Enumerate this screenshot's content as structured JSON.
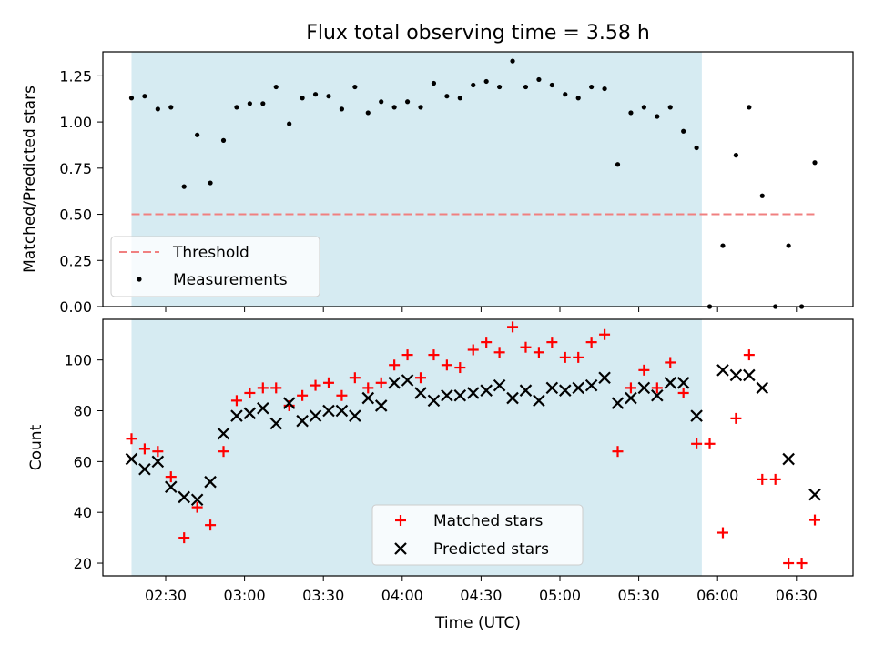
{
  "chart_data": [
    {
      "type": "scatter",
      "title": "Flux total observing time = 3.58 h",
      "xlabel": "",
      "ylabel": "Matched/Predicted stars",
      "ylim": [
        0,
        1.38
      ],
      "yticks": [
        "0.00",
        "0.25",
        "0.50",
        "0.75",
        "1.00",
        "1.25"
      ],
      "observing_window": [
        "02:17",
        "05:54"
      ],
      "threshold": {
        "name": "Threshold",
        "value": 0.5,
        "color": "#f08080"
      },
      "series": [
        {
          "name": "Measurements",
          "color": "#000000",
          "x": [
            "02:17",
            "02:22",
            "02:27",
            "02:32",
            "02:37",
            "02:42",
            "02:47",
            "02:52",
            "02:57",
            "03:02",
            "03:07",
            "03:12",
            "03:17",
            "03:22",
            "03:27",
            "03:32",
            "03:37",
            "03:42",
            "03:47",
            "03:52",
            "03:57",
            "04:02",
            "04:07",
            "04:12",
            "04:17",
            "04:22",
            "04:27",
            "04:32",
            "04:37",
            "04:42",
            "04:47",
            "04:52",
            "04:57",
            "05:02",
            "05:07",
            "05:12",
            "05:17",
            "05:22",
            "05:27",
            "05:32",
            "05:37",
            "05:42",
            "05:47",
            "05:52",
            "05:57",
            "06:02",
            "06:07",
            "06:12",
            "06:17",
            "06:22",
            "06:27",
            "06:32",
            "06:37"
          ],
          "y": [
            1.13,
            1.14,
            1.07,
            1.08,
            0.65,
            0.93,
            0.67,
            0.9,
            1.08,
            1.1,
            1.1,
            1.19,
            0.99,
            1.13,
            1.15,
            1.14,
            1.07,
            1.19,
            1.05,
            1.11,
            1.08,
            1.11,
            1.08,
            1.21,
            1.14,
            1.13,
            1.2,
            1.22,
            1.19,
            1.33,
            1.19,
            1.23,
            1.2,
            1.15,
            1.13,
            1.19,
            1.18,
            0.77,
            1.05,
            1.08,
            1.03,
            1.08,
            0.95,
            0.86,
            0.0,
            0.33,
            0.82,
            1.08,
            0.6,
            0.0,
            0.33,
            0.0,
            0.78
          ]
        }
      ],
      "legend": [
        "Threshold",
        "Measurements"
      ],
      "legend_position": "lower-left"
    },
    {
      "type": "scatter",
      "title": "",
      "xlabel": "Time (UTC)",
      "ylabel": "Count",
      "ylim": [
        15,
        116
      ],
      "yticks": [
        "20",
        "40",
        "60",
        "80",
        "100"
      ],
      "xticks": [
        "02:30",
        "03:00",
        "03:30",
        "04:00",
        "04:30",
        "05:00",
        "05:30",
        "06:00",
        "06:30"
      ],
      "observing_window": [
        "02:17",
        "05:54"
      ],
      "x": [
        "02:17",
        "02:22",
        "02:27",
        "02:32",
        "02:37",
        "02:42",
        "02:47",
        "02:52",
        "02:57",
        "03:02",
        "03:07",
        "03:12",
        "03:17",
        "03:22",
        "03:27",
        "03:32",
        "03:37",
        "03:42",
        "03:47",
        "03:52",
        "03:57",
        "04:02",
        "04:07",
        "04:12",
        "04:17",
        "04:22",
        "04:27",
        "04:32",
        "04:37",
        "04:42",
        "04:47",
        "04:52",
        "04:57",
        "05:02",
        "05:07",
        "05:12",
        "05:17",
        "05:22",
        "05:27",
        "05:32",
        "05:37",
        "05:42",
        "05:47",
        "05:52",
        "05:57",
        "06:02",
        "06:07",
        "06:12",
        "06:17",
        "06:22",
        "06:27",
        "06:32",
        "06:37"
      ],
      "series": [
        {
          "name": "Matched stars",
          "color": "#ff0000",
          "marker": "plus",
          "values": [
            69,
            65,
            64,
            54,
            30,
            42,
            35,
            64,
            84,
            87,
            89,
            89,
            82,
            86,
            90,
            91,
            86,
            93,
            89,
            91,
            98,
            102,
            93,
            102,
            98,
            97,
            104,
            107,
            103,
            113,
            105,
            103,
            107,
            101,
            101,
            107,
            110,
            64,
            89,
            96,
            89,
            99,
            87,
            67,
            67,
            32,
            77,
            102,
            53,
            53,
            20,
            20,
            37
          ]
        },
        {
          "name": "Predicted stars",
          "color": "#000000",
          "marker": "x",
          "values": [
            61,
            57,
            60,
            50,
            46,
            45,
            52,
            71,
            78,
            79,
            81,
            75,
            83,
            76,
            78,
            80,
            80,
            78,
            85,
            82,
            91,
            92,
            87,
            84,
            86,
            86,
            87,
            88,
            90,
            85,
            88,
            84,
            89,
            88,
            89,
            90,
            93,
            83,
            85,
            89,
            86,
            91,
            91,
            78,
            null,
            96,
            94,
            94,
            89,
            null,
            61,
            null,
            47
          ]
        }
      ],
      "legend": [
        "Matched stars",
        "Predicted stars"
      ],
      "legend_position": "lower-center"
    }
  ]
}
